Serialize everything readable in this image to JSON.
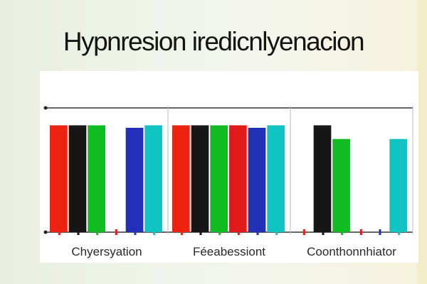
{
  "title": "Hypnresion iredicnlyenacion",
  "chart_data": {
    "type": "bar",
    "title": "Hypnresion iredicnlyenacion",
    "categories": [
      "Chyersyation",
      "Féeabessiont",
      "Coonthonnhiator"
    ],
    "ylim": [
      0,
      1
    ],
    "series": [
      {
        "color": "#ee2211",
        "values": [
          0.86,
          0.86,
          0.0
        ]
      },
      {
        "color": "#161616",
        "values": [
          0.86,
          0.86,
          0.86
        ]
      },
      {
        "color": "#11bb22",
        "values": [
          0.86,
          0.86,
          0.75
        ]
      },
      {
        "color": "#e21a1a",
        "values": [
          0.0,
          0.86,
          0.0
        ]
      },
      {
        "color": "#2230b8",
        "values": [
          0.84,
          0.84,
          0.0
        ]
      },
      {
        "color": "#11c4c4",
        "values": [
          0.86,
          0.86,
          0.75
        ]
      }
    ],
    "grid": true,
    "legend": "none"
  }
}
